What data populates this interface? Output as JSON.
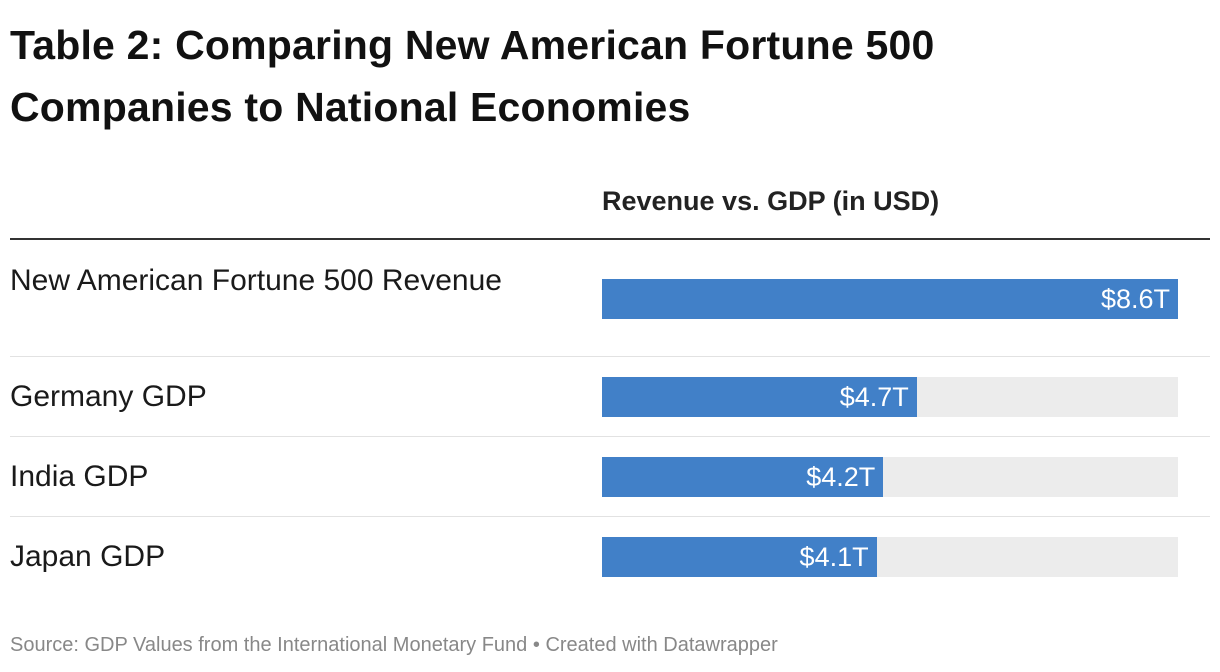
{
  "title": "Table 2: Comparing New American Fortune 500 Companies to National Economies",
  "column_header": "Revenue vs. GDP (in USD)",
  "source_text": "Source: GDP Values from the International Monetary Fund",
  "separator": "•",
  "credit_text": "Created with Datawrapper",
  "colors": {
    "bar": "#4180c8",
    "track": "#ececec",
    "bar_text": "#ffffff"
  },
  "chart_data": {
    "type": "bar",
    "orientation": "horizontal",
    "unit": "USD trillions",
    "xlim": [
      0,
      8.6
    ],
    "categories": [
      "New American Fortune 500 Revenue",
      "Germany GDP",
      "India GDP",
      "Japan GDP"
    ],
    "values": [
      8.6,
      4.7,
      4.2,
      4.1
    ],
    "value_labels": [
      "$8.6T",
      "$4.7T",
      "$4.2T",
      "$4.1T"
    ]
  }
}
